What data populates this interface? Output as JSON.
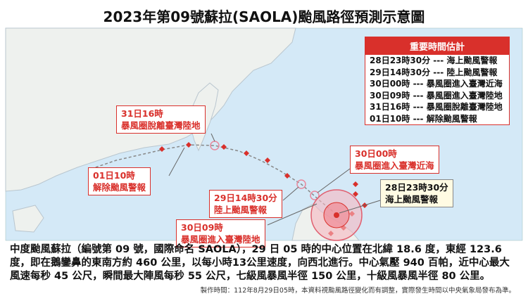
{
  "title": "2023年第09號蘇拉(SAOLA)颱風路徑預測示意圖",
  "key_times": {
    "title": "重要時間估計",
    "rows": [
      "28日23時30分 --- 海上颱風警報",
      "29日14時30分 --- 陸上颱風警報",
      "30日00時 --- 暴風圈進入臺灣近海",
      "30日09時 --- 暴風圈進入臺灣陸地",
      "31日16時 --- 暴風圈脫離臺灣陸地",
      "01日10時 --- 解除颱風警報"
    ]
  },
  "callouts": [
    {
      "time": "31日16時",
      "event": "暴風圈脫離臺灣陸地"
    },
    {
      "time": "01日10時",
      "event": "解除颱風警報"
    },
    {
      "time": "30日00時",
      "event": "暴風圈進入臺灣近海"
    },
    {
      "time": "29日14時30分",
      "event": "陸上颱風警報"
    },
    {
      "time": "30日09時",
      "event": "暴風圈進入臺灣陸地"
    },
    {
      "time": "28日23時30分",
      "event": "海上颱風警報"
    }
  ],
  "description": "中度颱風蘇拉（編號第 09 號，國際命名 SAOLA），29 日 05 時的中心位置在北緯 18.6 度，東經 123.6 度，即在鵝鑾鼻的東南方約 460 公里，以每小時13公里速度，向西北進行。中心氣壓 940 百帕，近中心最大風速每秒 45 公尺，瞬間最大陣風每秒 55 公尺，七級風暴風半徑 150 公里，十級風暴風半徑 80 公里。",
  "footer": "製作時間：112年8月29日05時，本資料視颱風路徑變化而有調整，實際發生時間以中央氣象局發布為準。"
}
